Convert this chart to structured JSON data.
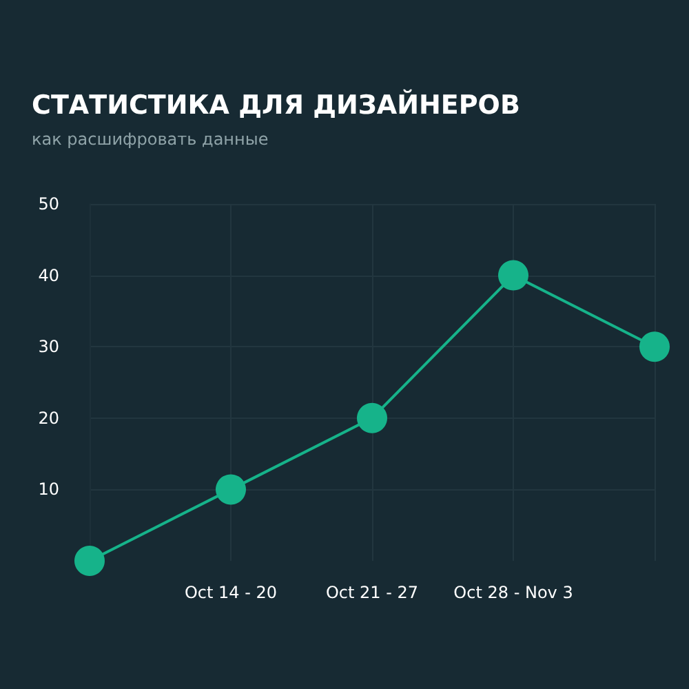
{
  "chart_data": {
    "type": "line",
    "title": "СТАТИСТИКА ДЛЯ ДИЗАЙНЕРОВ",
    "subtitle": "как расшифровать данные",
    "categories": [
      null,
      "Oct 14 - 20",
      "Oct 21 - 27",
      "Oct 28 - Nov 3",
      null
    ],
    "series": [
      {
        "color": "#16b38a",
        "values": [
          0,
          10,
          20,
          40,
          30
        ]
      }
    ],
    "ylim": [
      0,
      50
    ],
    "yticks": [
      10,
      20,
      30,
      40,
      50
    ],
    "grid": true,
    "marker": "circle",
    "line_style": "solid"
  }
}
